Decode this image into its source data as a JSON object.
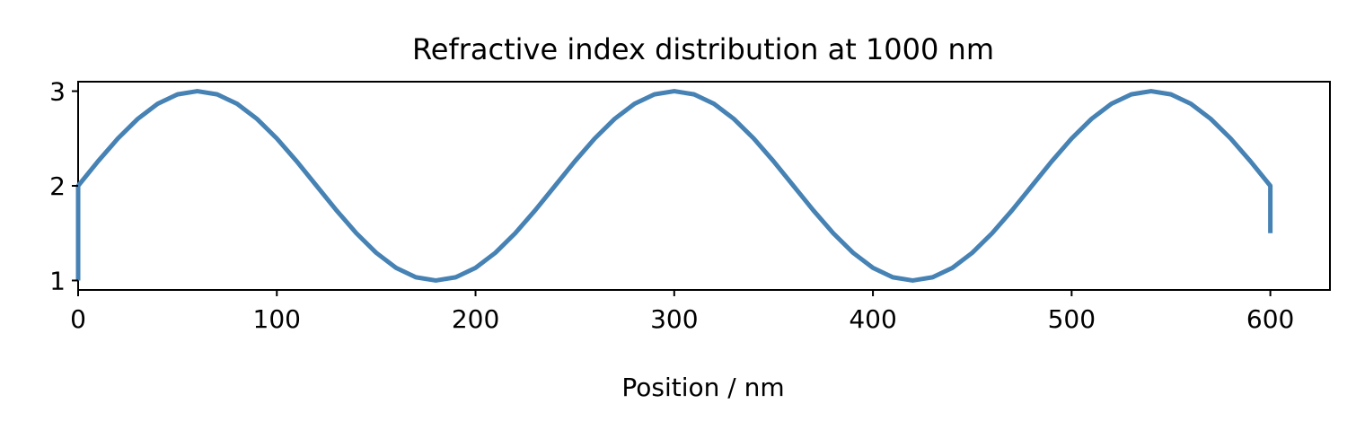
{
  "chart_data": {
    "type": "line",
    "title": "Refractive index distribution at  1000 nm",
    "xlabel": "Position / nm",
    "ylabel": "",
    "xlim": [
      0,
      630
    ],
    "ylim": [
      0.9,
      3.1
    ],
    "xticks": [
      0,
      100,
      200,
      300,
      400,
      500,
      600
    ],
    "yticks": [
      1,
      2,
      3
    ],
    "grid": false,
    "series": [
      {
        "color": "#4682b4",
        "x": [
          0,
          0,
          10,
          20,
          30,
          40,
          50,
          60,
          70,
          80,
          90,
          100,
          110,
          120,
          130,
          140,
          150,
          160,
          170,
          180,
          190,
          200,
          210,
          220,
          230,
          240,
          250,
          260,
          270,
          280,
          290,
          300,
          310,
          320,
          330,
          340,
          350,
          360,
          370,
          380,
          390,
          400,
          410,
          420,
          430,
          440,
          450,
          460,
          470,
          480,
          490,
          500,
          510,
          520,
          530,
          540,
          550,
          560,
          570,
          580,
          590,
          600,
          600
        ],
        "y": [
          1.0,
          2.0,
          2.259,
          2.5,
          2.707,
          2.866,
          2.966,
          3.0,
          2.966,
          2.866,
          2.707,
          2.5,
          2.259,
          2.0,
          1.741,
          1.5,
          1.293,
          1.134,
          1.034,
          1.0,
          1.034,
          1.134,
          1.293,
          1.5,
          1.741,
          2.0,
          2.259,
          2.5,
          2.707,
          2.866,
          2.966,
          3.0,
          2.966,
          2.866,
          2.707,
          2.5,
          2.259,
          2.0,
          1.741,
          1.5,
          1.293,
          1.134,
          1.034,
          1.0,
          1.034,
          1.134,
          1.293,
          1.5,
          1.741,
          2.0,
          2.259,
          2.5,
          2.707,
          2.866,
          2.966,
          3.0,
          2.966,
          2.866,
          2.707,
          2.5,
          2.259,
          2.0,
          1.5
        ]
      }
    ]
  }
}
